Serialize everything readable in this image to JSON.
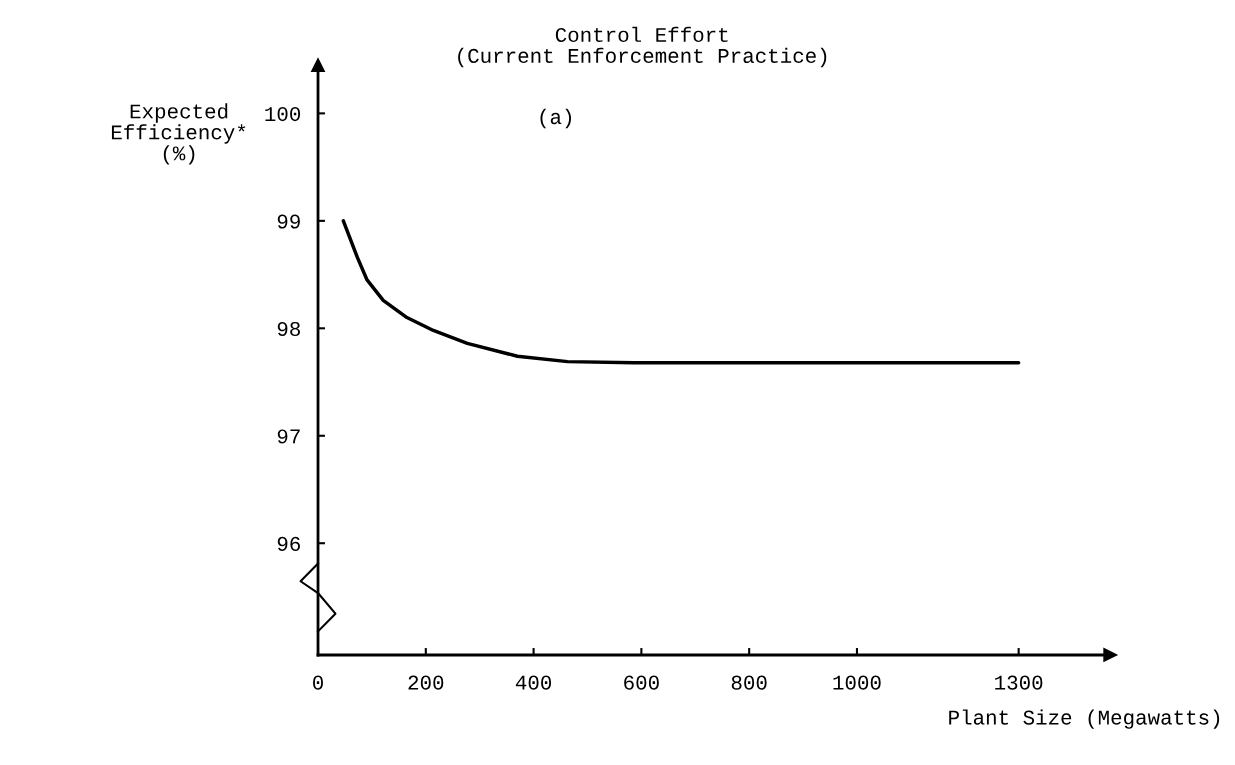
{
  "chart_data": {
    "type": "line",
    "title": "Control Effort\n(Current Enforcement Practice)",
    "xlabel": "Plant Size (Megawatts)",
    "ylabel": "Expected\nEfficiency*\n(%)",
    "annotations": [
      "(a)"
    ],
    "series": [
      {
        "color": "#000000",
        "x": [
          47,
          73,
          91,
          121,
          165,
          214,
          277,
          370,
          463,
          586,
          800,
          1000,
          1300
        ],
        "values": [
          99.0,
          98.66,
          98.45,
          98.26,
          98.1,
          97.98,
          97.86,
          97.74,
          97.69,
          97.68,
          97.68,
          97.68,
          97.68
        ]
      }
    ],
    "xlim": [
      0,
      1470
    ],
    "ylim": [
      94.96,
      100.45
    ],
    "xticks": [
      0,
      200,
      400,
      600,
      800,
      1000,
      1300
    ],
    "yticks": [
      96,
      97,
      98,
      99,
      100
    ],
    "grid": false,
    "legend": false,
    "marker": "none",
    "line_style": "solid"
  }
}
